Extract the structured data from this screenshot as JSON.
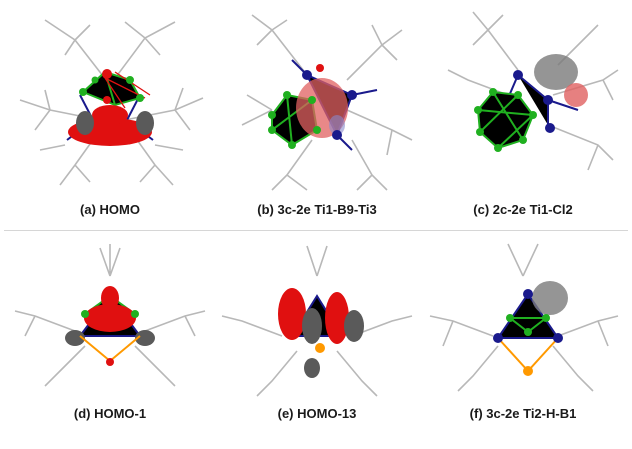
{
  "figure": {
    "divider_color": "#d6d6d6",
    "atom_colors": {
      "titanium": "#1a1a8c",
      "boron": "#20b020",
      "chlorine_or_sulfur": "#ff9900",
      "hydrogen": "#c8c8c8",
      "orbital_positive": "#e01010",
      "orbital_negative": "#5a5a5a"
    },
    "panels": [
      {
        "id": "a",
        "caption": "(a) HOMO"
      },
      {
        "id": "b",
        "caption": "(b) 3c-2e Ti1-B9-Ti3"
      },
      {
        "id": "c",
        "caption": "(c) 2c-2e Ti1-Cl2"
      },
      {
        "id": "d",
        "caption": "(d) HOMO-1"
      },
      {
        "id": "e",
        "caption": "(e) HOMO-13"
      },
      {
        "id": "f",
        "caption": "(f) 3c-2e Ti2-H-B1"
      }
    ]
  }
}
